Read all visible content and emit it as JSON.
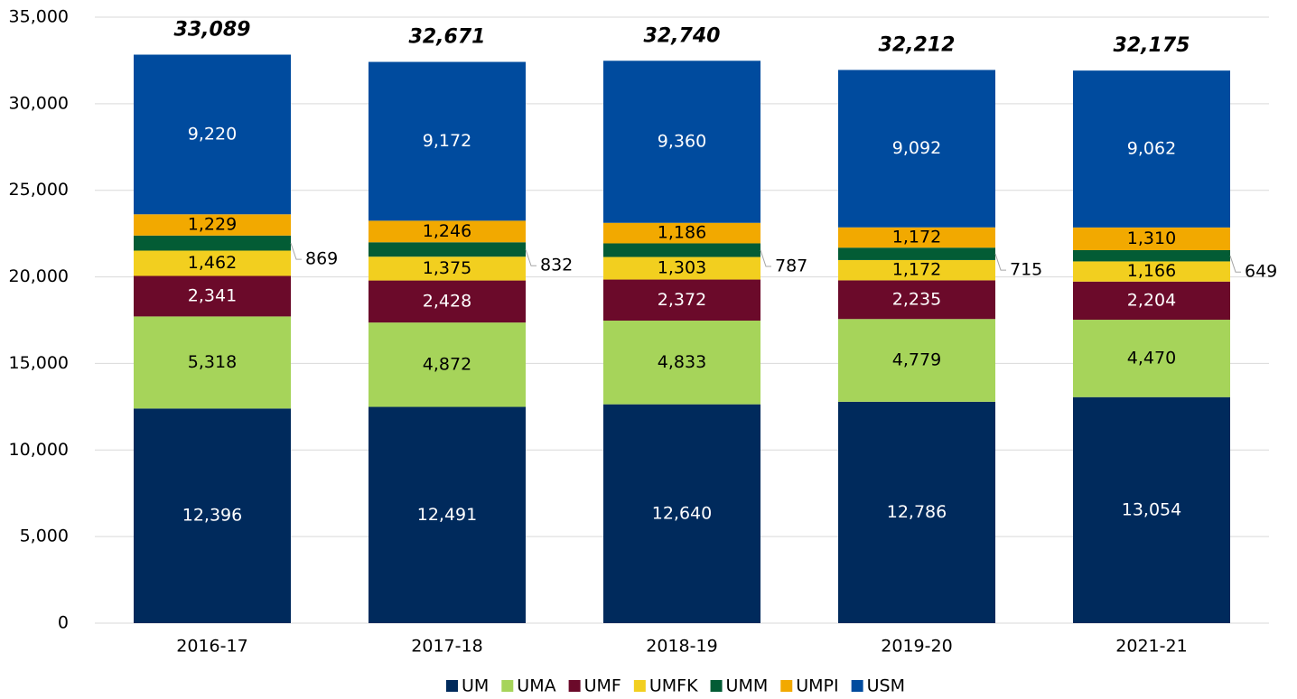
{
  "chart_data": {
    "type": "stacked_bar",
    "categories": [
      "2016-17",
      "2017-18",
      "2018-19",
      "2019-20",
      "2021-21"
    ],
    "series": [
      {
        "name": "UM",
        "color": "#002a5c",
        "label_color": "#ffffff",
        "values": [
          12396,
          12491,
          12640,
          12786,
          13054
        ],
        "value_labels": [
          "12,396",
          "12,491",
          "12,640",
          "12,786",
          "13,054"
        ]
      },
      {
        "name": "UMA",
        "color": "#a6d45a",
        "label_color": "#000000",
        "values": [
          5318,
          4872,
          4833,
          4779,
          4470
        ],
        "value_labels": [
          "5,318",
          "4,872",
          "4,833",
          "4,779",
          "4,470"
        ]
      },
      {
        "name": "UMF",
        "color": "#6b0a2a",
        "label_color": "#ffffff",
        "values": [
          2341,
          2428,
          2372,
          2235,
          2204
        ],
        "value_labels": [
          "2,341",
          "2,428",
          "2,372",
          "2,235",
          "2,204"
        ]
      },
      {
        "name": "UMFK",
        "color": "#f2cf1f",
        "label_color": "#000000",
        "values": [
          1462,
          1375,
          1303,
          1172,
          1166
        ],
        "value_labels": [
          "1,462",
          "1,375",
          "1,303",
          "1,172",
          "1,166"
        ]
      },
      {
        "name": "UMM",
        "color": "#035c35",
        "label_color": "#000000",
        "label_outside": true,
        "values": [
          869,
          832,
          787,
          715,
          649
        ]
      },
      {
        "name": "UMPI",
        "color": "#f2a900",
        "label_color": "#000000",
        "values": [
          1229,
          1246,
          1186,
          1172,
          1310
        ],
        "value_labels": [
          "1,229",
          "1,246",
          "1,186",
          "1,172",
          "1,310"
        ]
      },
      {
        "name": "USM",
        "color": "#004b9e",
        "label_color": "#ffffff",
        "values": [
          9220,
          9172,
          9360,
          9092,
          9062
        ],
        "value_labels": [
          "9,220",
          "9,172",
          "9,360",
          "9,092",
          "9,062"
        ]
      }
    ],
    "totals": [
      33089,
      32671,
      32740,
      32212,
      32175
    ],
    "total_labels": [
      "33,089",
      "32,671",
      "32,740",
      "32,212",
      "32,175"
    ],
    "ylim": [
      0,
      35000
    ],
    "yticks": [
      0,
      {
        "value": 5000,
        "label": "5,000"
      },
      {
        "value": 10000,
        "label": "10,000"
      },
      {
        "value": 15000,
        "label": "15,000"
      },
      {
        "value": 20000,
        "label": "20,000"
      },
      {
        "value": 25000,
        "label": "25,000"
      },
      {
        "value": 30000,
        "label": "30,000"
      },
      {
        "value": 35000,
        "label": "35,000"
      }
    ],
    "grid": true,
    "legend": "bottom"
  }
}
